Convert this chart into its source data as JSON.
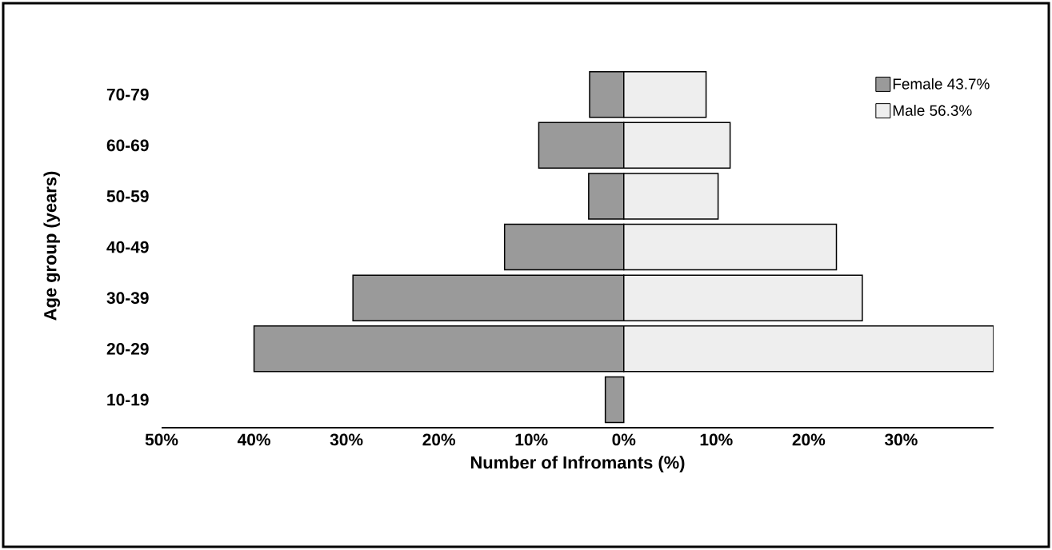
{
  "chart_data": {
    "type": "bar",
    "orientation": "horizontal",
    "xlabel": "Number of Infromants (%)",
    "ylabel": "Age group (years)",
    "stacked": true,
    "categories": [
      "70-79",
      "60-69",
      "50-59",
      "40-49",
      "30-39",
      "20-29",
      "10-19"
    ],
    "series": [
      {
        "name": "Female 43.7%",
        "color": "#9a9a9a",
        "values": [
          -3.7,
          -9.2,
          -3.8,
          -12.9,
          -29.3,
          -40,
          -2
        ]
      },
      {
        "name": "Male 56.3%",
        "color": "#eeeeee",
        "values": [
          8.9,
          11.5,
          10.2,
          23,
          25.8,
          40,
          null
        ]
      }
    ],
    "xlim": [
      -50,
      40
    ],
    "xticks": [
      {
        "value": -50,
        "label": "50%"
      },
      {
        "value": -40,
        "label": "40%"
      },
      {
        "value": -30,
        "label": "30%"
      },
      {
        "value": -20,
        "label": "20%"
      },
      {
        "value": -10,
        "label": "10%"
      },
      {
        "value": 0,
        "label": "0%"
      },
      {
        "value": 10,
        "label": "10%"
      },
      {
        "value": 20,
        "label": "20%"
      },
      {
        "value": 30,
        "label": "30%"
      }
    ],
    "legend": "top right"
  }
}
